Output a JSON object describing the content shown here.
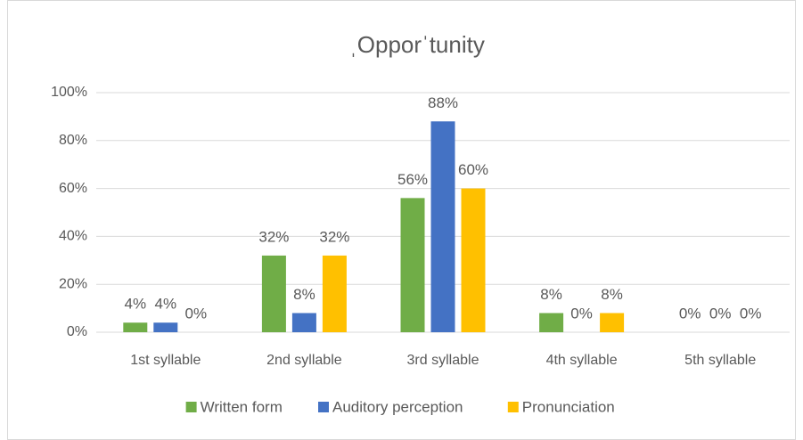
{
  "chart_data": {
    "type": "bar",
    "title": "ˌOpporˈtunity",
    "categories": [
      "1st syllable",
      "2nd syllable",
      "3rd syllable",
      "4th syllable",
      "5th syllable"
    ],
    "series": [
      {
        "name": "Written form",
        "color": "#70ad47",
        "values": [
          4,
          32,
          56,
          8,
          0
        ],
        "value_labels": [
          "4%",
          "32%",
          "56%",
          "8%",
          "0%"
        ]
      },
      {
        "name": "Auditory perception",
        "color": "#4472c4",
        "values": [
          4,
          8,
          88,
          0,
          0
        ],
        "value_labels": [
          "4%",
          "8%",
          "88%",
          "0%",
          "0%"
        ]
      },
      {
        "name": "Pronunciation",
        "color": "#ffc000",
        "values": [
          0,
          32,
          60,
          8,
          0
        ],
        "value_labels": [
          "0%",
          "32%",
          "60%",
          "8%",
          "0%"
        ]
      }
    ],
    "ylim": [
      0,
      100
    ],
    "yticks": [
      {
        "value": 0,
        "label": "0%"
      },
      {
        "value": 20,
        "label": "20%"
      },
      {
        "value": 40,
        "label": "40%"
      },
      {
        "value": 60,
        "label": "60%"
      },
      {
        "value": 80,
        "label": "80%"
      },
      {
        "value": 100,
        "label": "100%"
      }
    ],
    "grid": true,
    "legend": "bottom"
  }
}
